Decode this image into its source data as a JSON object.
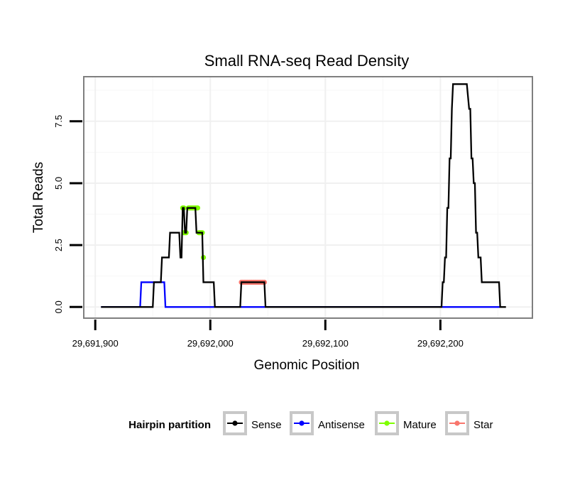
{
  "chart_data": {
    "type": "line",
    "title": "Small RNA-seq Read Density",
    "xlabel": "Genomic Position",
    "ylabel": "Total Reads",
    "xlim": [
      29691890,
      29692280
    ],
    "ylim": [
      -0.45,
      9.3
    ],
    "x_ticks": [
      29691900,
      29692000,
      29692100,
      29692200
    ],
    "x_tick_labels": [
      "29,691,900",
      "29,692,000",
      "29,692,100",
      "29,692,200"
    ],
    "y_ticks": [
      0,
      2.5,
      5,
      7.5
    ],
    "y_tick_labels": [
      "0.0",
      "2.5",
      "5.0",
      "7.5"
    ],
    "grid": true,
    "legend": {
      "title": "Hairpin partition",
      "position": "bottom",
      "entries": [
        "Sense",
        "Antisense",
        "Mature",
        "Star"
      ]
    },
    "series": [
      {
        "name": "Antisense",
        "color": "#0000ff",
        "style": "step-line",
        "x": [
          29691905,
          29691939,
          29691940,
          29691960,
          29691961,
          29692253
        ],
        "values": [
          0,
          0,
          1,
          1,
          0,
          0
        ]
      },
      {
        "name": "Sense",
        "color": "#000000",
        "style": "step-line",
        "x": [
          29691905,
          29691950,
          29691951,
          29691957,
          29691958,
          29691964,
          29691965,
          29691973,
          29691974,
          29691975,
          29691976,
          29691977,
          29691978,
          29691979,
          29691980,
          29691987,
          29691988,
          29691993,
          29691994,
          29691998,
          29692003,
          29692004,
          29692026,
          29692027,
          29692047,
          29692048,
          29692201,
          29692202,
          29692203,
          29692204,
          29692205,
          29692206,
          29692207,
          29692208,
          29692209,
          29692210,
          29692211,
          29692214,
          29692215,
          29692216,
          29692222,
          29692223,
          29692225,
          29692226,
          29692227,
          29692228,
          29692229,
          29692230,
          29692231,
          29692232,
          29692233,
          29692235,
          29692236,
          29692251,
          29692252,
          29692257
        ],
        "values": [
          0,
          0,
          1,
          1,
          2,
          2,
          3,
          3,
          2,
          2,
          4,
          4,
          3,
          3,
          4,
          4,
          3,
          3,
          1,
          1,
          1,
          0,
          0,
          1,
          1,
          0,
          0,
          1,
          1,
          2,
          2,
          4,
          4,
          6,
          6,
          8,
          9,
          9,
          9,
          9,
          9,
          9,
          8,
          8,
          6,
          6,
          5,
          5,
          3,
          3,
          2,
          2,
          1,
          1,
          0,
          0
        ]
      },
      {
        "name": "Mature",
        "color": "#7fff00",
        "style": "points",
        "x": [
          29691976,
          29691977,
          29691977,
          29691978,
          29691979,
          29691981,
          29691982,
          29691983,
          29691984,
          29691985,
          29691986,
          29691987,
          29691988,
          29691989,
          29691990,
          29691991,
          29691992,
          29691993,
          29691994
        ],
        "values": [
          4,
          4,
          3,
          3,
          3,
          4,
          4,
          4,
          4,
          4,
          4,
          4,
          4,
          4,
          3,
          3,
          3,
          3,
          2
        ]
      },
      {
        "name": "Star",
        "color": "#f8766d",
        "style": "points",
        "x": [
          29692027,
          29692028,
          29692029,
          29692030,
          29692031,
          29692032,
          29692033,
          29692034,
          29692035,
          29692036,
          29692037,
          29692038,
          29692039,
          29692040,
          29692041,
          29692042,
          29692043,
          29692044,
          29692045,
          29692046,
          29692047
        ],
        "values": [
          1,
          1,
          1,
          1,
          1,
          1,
          1,
          1,
          1,
          1,
          1,
          1,
          1,
          1,
          1,
          1,
          1,
          1,
          1,
          1,
          1
        ]
      }
    ]
  }
}
